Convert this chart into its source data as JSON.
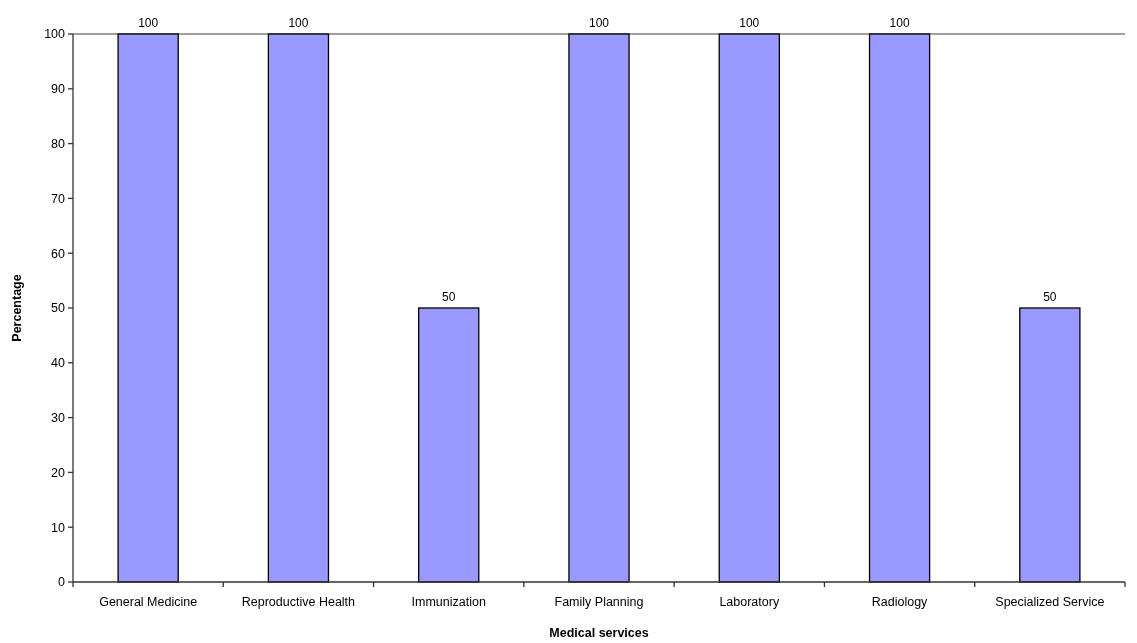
{
  "chart_data": {
    "type": "bar",
    "xlabel": "Medical services",
    "ylabel": "Percentage",
    "categories": [
      "General Medicine",
      "Reproductive Health",
      "Immunization",
      "Family Planning",
      "Laboratory",
      "Radiology",
      "Specialized Service"
    ],
    "values": [
      100,
      100,
      50,
      100,
      100,
      100,
      50
    ],
    "color": "#9999ff",
    "ylim": [
      0,
      100
    ],
    "yticks": [
      0,
      10,
      20,
      30,
      40,
      50,
      60,
      70,
      80,
      90,
      100
    ],
    "grid": false,
    "data_labels": true
  }
}
